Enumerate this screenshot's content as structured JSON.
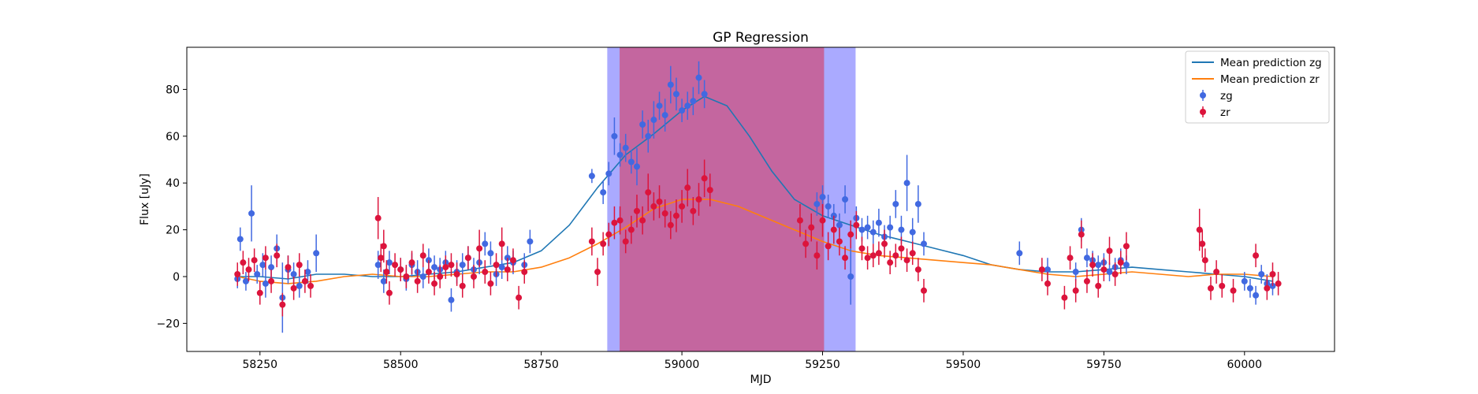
{
  "chart_data": {
    "type": "scatter",
    "title": "GP Regression",
    "xlabel": "MJD",
    "ylabel": "Flux [uJy]",
    "xlim": [
      58120,
      60160
    ],
    "ylim": [
      -32,
      98
    ],
    "xticks": [
      58250,
      58500,
      58750,
      59000,
      59250,
      59500,
      59750,
      60000
    ],
    "yticks": [
      -20,
      0,
      20,
      40,
      60,
      80
    ],
    "grid": false,
    "legend_position": "top-right",
    "spans": [
      {
        "x0": 58868,
        "x1": 59308,
        "color": "#aaaaff"
      },
      {
        "x0": 58890,
        "x1": 59252,
        "color": "#c4669f"
      }
    ],
    "series": [
      {
        "name": "Mean prediction zg",
        "type": "line",
        "color": "#1f77b4",
        "x": [
          58210,
          58250,
          58300,
          58350,
          58400,
          58450,
          58500,
          58550,
          58600,
          58650,
          58700,
          58750,
          58800,
          58850,
          58900,
          58950,
          59000,
          59040,
          59080,
          59120,
          59160,
          59200,
          59250,
          59300,
          59350,
          59400,
          59450,
          59500,
          59550,
          59600,
          59650,
          59700,
          59750,
          59800,
          59850,
          59900,
          59950,
          60000,
          60050
        ],
        "values": [
          0,
          0,
          -1,
          1,
          1,
          0,
          0,
          1,
          2,
          4,
          6,
          11,
          22,
          38,
          52,
          61,
          71,
          77,
          73,
          60,
          45,
          33,
          26,
          22,
          18,
          15,
          12,
          9,
          5,
          3,
          2,
          2,
          3,
          4,
          3,
          2,
          1,
          0,
          -2
        ]
      },
      {
        "name": "Mean prediction zr",
        "type": "line",
        "color": "#ff7f0e",
        "x": [
          58210,
          58250,
          58300,
          58350,
          58400,
          58450,
          58500,
          58550,
          58600,
          58650,
          58700,
          58750,
          58800,
          58850,
          58900,
          58950,
          59000,
          59050,
          59100,
          59150,
          59200,
          59250,
          59300,
          59350,
          59400,
          59450,
          59500,
          59550,
          59600,
          59650,
          59700,
          59750,
          59800,
          59850,
          59900,
          59950,
          60000,
          60050
        ],
        "values": [
          0,
          -2,
          -3,
          -2,
          0,
          1,
          0,
          0,
          1,
          2,
          2,
          4,
          8,
          14,
          21,
          29,
          33,
          33,
          30,
          25,
          20,
          15,
          11,
          9,
          8,
          7,
          6,
          5,
          3,
          1,
          0,
          1,
          2,
          1,
          0,
          1,
          1,
          0
        ]
      },
      {
        "name": "zg",
        "type": "errorbar",
        "color": "#4169e1",
        "x": [
          58210,
          58215,
          58225,
          58235,
          58245,
          58255,
          58260,
          58270,
          58280,
          58290,
          58300,
          58310,
          58320,
          58335,
          58350,
          58460,
          58470,
          58480,
          58500,
          58510,
          58520,
          58530,
          58540,
          58550,
          58560,
          58570,
          58580,
          58590,
          58600,
          58610,
          58620,
          58630,
          58640,
          58650,
          58660,
          58670,
          58680,
          58690,
          58700,
          58720,
          58730,
          58840,
          58860,
          58870,
          58880,
          58890,
          58900,
          58910,
          58920,
          58930,
          58940,
          58950,
          58960,
          58970,
          58980,
          58990,
          59000,
          59010,
          59020,
          59030,
          59040,
          59240,
          59250,
          59260,
          59270,
          59280,
          59290,
          59300,
          59310,
          59320,
          59330,
          59340,
          59350,
          59360,
          59370,
          59380,
          59390,
          59400,
          59410,
          59420,
          59430,
          59600,
          59650,
          59700,
          59710,
          59720,
          59730,
          59740,
          59750,
          59760,
          59770,
          59780,
          59790,
          60000,
          60010,
          60020,
          60030,
          60040,
          60050
        ],
        "values": [
          -1,
          16,
          -2,
          27,
          1,
          5,
          -3,
          4,
          12,
          -9,
          3,
          1,
          -4,
          2,
          10,
          5,
          -2,
          6,
          3,
          -1,
          5,
          2,
          0,
          7,
          4,
          3,
          6,
          -10,
          2,
          5,
          8,
          3,
          6,
          14,
          10,
          1,
          4,
          8,
          6,
          5,
          15,
          43,
          36,
          44,
          60,
          52,
          55,
          49,
          47,
          65,
          60,
          67,
          73,
          69,
          82,
          78,
          71,
          73,
          75,
          85,
          78,
          31,
          34,
          30,
          26,
          22,
          33,
          0,
          25,
          20,
          21,
          19,
          23,
          17,
          21,
          31,
          20,
          40,
          19,
          31,
          14,
          10,
          3,
          2,
          20,
          8,
          7,
          5,
          6,
          2,
          4,
          7,
          5,
          -2,
          -5,
          -8,
          1,
          -3,
          -4
        ],
        "errors": [
          4,
          5,
          4,
          12,
          4,
          5,
          6,
          5,
          6,
          15,
          6,
          5,
          5,
          5,
          8,
          6,
          5,
          5,
          5,
          5,
          5,
          5,
          5,
          5,
          5,
          5,
          5,
          5,
          5,
          5,
          5,
          5,
          5,
          5,
          5,
          5,
          5,
          5,
          5,
          5,
          5,
          3,
          5,
          5,
          8,
          5,
          6,
          5,
          8,
          6,
          7,
          8,
          6,
          7,
          8,
          7,
          5,
          6,
          6,
          7,
          6,
          5,
          5,
          5,
          5,
          5,
          6,
          12,
          5,
          5,
          5,
          5,
          6,
          5,
          5,
          6,
          6,
          12,
          6,
          8,
          5,
          5,
          5,
          4,
          5,
          4,
          4,
          4,
          4,
          4,
          4,
          5,
          4,
          4,
          4,
          4,
          4,
          4,
          4
        ]
      },
      {
        "name": "zr",
        "type": "errorbar",
        "color": "#dc143c",
        "x": [
          58210,
          58220,
          58230,
          58240,
          58250,
          58260,
          58270,
          58280,
          58290,
          58300,
          58310,
          58320,
          58330,
          58340,
          58460,
          58465,
          58470,
          58475,
          58480,
          58490,
          58500,
          58510,
          58520,
          58530,
          58540,
          58550,
          58560,
          58570,
          58580,
          58590,
          58600,
          58610,
          58620,
          58630,
          58640,
          58650,
          58660,
          58670,
          58680,
          58690,
          58700,
          58710,
          58720,
          58840,
          58850,
          58860,
          58870,
          58880,
          58890,
          58900,
          58910,
          58920,
          58930,
          58940,
          58950,
          58960,
          58970,
          58980,
          58990,
          59000,
          59010,
          59020,
          59030,
          59040,
          59050,
          59210,
          59220,
          59230,
          59240,
          59250,
          59260,
          59270,
          59280,
          59290,
          59300,
          59310,
          59320,
          59330,
          59340,
          59350,
          59360,
          59370,
          59380,
          59390,
          59400,
          59410,
          59420,
          59430,
          59640,
          59650,
          59680,
          59690,
          59700,
          59710,
          59720,
          59730,
          59740,
          59750,
          59760,
          59770,
          59780,
          59790,
          59920,
          59925,
          59930,
          59940,
          59950,
          59960,
          59980,
          60020,
          60040,
          60050,
          60060
        ],
        "values": [
          1,
          6,
          3,
          7,
          -7,
          8,
          -2,
          9,
          -12,
          4,
          -5,
          5,
          -2,
          -4,
          25,
          8,
          13,
          2,
          -7,
          5,
          3,
          0,
          6,
          -2,
          9,
          2,
          -3,
          0,
          4,
          5,
          1,
          -4,
          8,
          0,
          12,
          2,
          -3,
          5,
          14,
          3,
          7,
          -9,
          2,
          15,
          2,
          14,
          18,
          23,
          24,
          15,
          20,
          28,
          24,
          36,
          30,
          32,
          27,
          22,
          26,
          30,
          38,
          28,
          33,
          42,
          37,
          24,
          14,
          21,
          9,
          24,
          13,
          20,
          15,
          8,
          18,
          22,
          12,
          8,
          9,
          10,
          14,
          6,
          9,
          12,
          7,
          10,
          3,
          -6,
          3,
          -3,
          -9,
          8,
          -6,
          18,
          -2,
          5,
          -4,
          3,
          11,
          1,
          6,
          13,
          20,
          14,
          7,
          -5,
          2,
          -4,
          -6,
          9,
          -5,
          1,
          -3
        ],
        "errors": [
          5,
          5,
          5,
          5,
          5,
          5,
          5,
          5,
          5,
          5,
          5,
          5,
          5,
          5,
          9,
          6,
          7,
          5,
          5,
          5,
          5,
          5,
          5,
          5,
          5,
          5,
          5,
          5,
          5,
          5,
          5,
          5,
          5,
          5,
          8,
          5,
          5,
          5,
          7,
          5,
          5,
          5,
          5,
          6,
          6,
          5,
          5,
          7,
          6,
          5,
          6,
          7,
          6,
          8,
          6,
          7,
          6,
          6,
          7,
          7,
          8,
          6,
          7,
          8,
          7,
          7,
          6,
          6,
          6,
          7,
          6,
          6,
          6,
          5,
          6,
          6,
          5,
          5,
          5,
          5,
          6,
          5,
          5,
          5,
          5,
          5,
          5,
          5,
          5,
          5,
          5,
          5,
          5,
          6,
          5,
          5,
          5,
          5,
          6,
          5,
          5,
          6,
          9,
          6,
          5,
          5,
          5,
          5,
          5,
          5,
          5,
          5,
          5
        ]
      }
    ]
  }
}
